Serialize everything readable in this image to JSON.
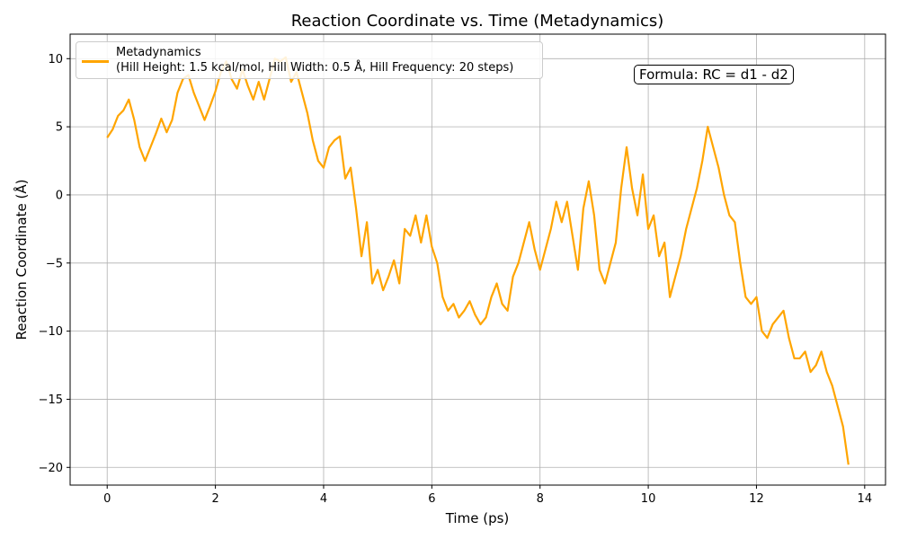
{
  "chart_data": {
    "type": "line",
    "title": "Reaction Coordinate vs. Time (Metadynamics)",
    "x_label": "Time (ps)",
    "y_label": "Reaction Coordinate (Å)",
    "annotation": "Formula: RC = d1 - d2",
    "x": [
      0,
      0.1,
      0.2,
      0.3,
      0.4,
      0.5,
      0.6,
      0.7,
      0.8,
      0.9,
      1.0,
      1.1,
      1.2,
      1.3,
      1.4,
      1.5,
      1.6,
      1.7,
      1.8,
      1.9,
      2.0,
      2.1,
      2.2,
      2.3,
      2.4,
      2.5,
      2.6,
      2.7,
      2.8,
      2.9,
      3.0,
      3.1,
      3.2,
      3.3,
      3.4,
      3.5,
      3.6,
      3.7,
      3.8,
      3.9,
      4.0,
      4.1,
      4.2,
      4.3,
      4.4,
      4.5,
      4.6,
      4.7,
      4.8,
      4.9,
      5.0,
      5.1,
      5.2,
      5.3,
      5.4,
      5.5,
      5.6,
      5.7,
      5.8,
      5.9,
      6.0,
      6.1,
      6.2,
      6.3,
      6.4,
      6.5,
      6.6,
      6.7,
      6.8,
      6.9,
      7.0,
      7.1,
      7.2,
      7.3,
      7.4,
      7.5,
      7.6,
      7.7,
      7.8,
      7.9,
      8.0,
      8.1,
      8.2,
      8.3,
      8.4,
      8.5,
      8.6,
      8.7,
      8.8,
      8.9,
      9.0,
      9.1,
      9.2,
      9.3,
      9.4,
      9.5,
      9.6,
      9.7,
      9.8,
      9.9,
      10.0,
      10.1,
      10.2,
      10.3,
      10.4,
      10.5,
      10.6,
      10.7,
      10.8,
      10.9,
      11.0,
      11.1,
      11.2,
      11.3,
      11.4,
      11.5,
      11.6,
      11.7,
      11.8,
      11.9,
      12.0,
      12.1,
      12.2,
      12.3,
      12.4,
      12.5,
      12.6,
      12.7,
      12.8,
      12.9,
      13.0,
      13.1,
      13.2,
      13.3,
      13.4,
      13.5,
      13.6,
      13.7
    ],
    "series": [
      {
        "name": "Metadynamics\n(Hill Height: 1.5 kcal/mol, Hill Width: 0.5 Å, Hill Frequency: 20 steps)",
        "color": "#ffa500",
        "values": [
          4.2,
          4.8,
          5.8,
          6.2,
          7.0,
          5.5,
          3.5,
          2.5,
          3.5,
          4.5,
          5.6,
          4.6,
          5.5,
          7.5,
          8.5,
          8.8,
          7.5,
          6.5,
          5.5,
          6.5,
          7.6,
          9.0,
          9.8,
          8.5,
          7.8,
          9.2,
          8.0,
          7.0,
          8.3,
          7.0,
          8.5,
          10.0,
          9.8,
          10.1,
          8.3,
          9.0,
          7.5,
          6.0,
          4.0,
          2.5,
          2.0,
          3.5,
          4.0,
          4.3,
          1.2,
          2.0,
          -1.0,
          -4.5,
          -2.0,
          -6.5,
          -5.5,
          -7.0,
          -6.0,
          -4.8,
          -6.5,
          -2.5,
          -3.0,
          -1.5,
          -3.5,
          -1.5,
          -3.8,
          -5.0,
          -7.5,
          -8.5,
          -8.0,
          -9.0,
          -8.5,
          -7.8,
          -8.8,
          -9.5,
          -9.0,
          -7.5,
          -6.5,
          -8.0,
          -8.5,
          -6.0,
          -5.0,
          -3.5,
          -2.0,
          -4.0,
          -5.5,
          -4.0,
          -2.5,
          -0.5,
          -2.0,
          -0.5,
          -3.0,
          -5.5,
          -1.0,
          1.0,
          -1.5,
          -5.5,
          -6.5,
          -5.0,
          -3.5,
          0.5,
          3.5,
          0.5,
          -1.5,
          1.5,
          -2.5,
          -1.5,
          -4.5,
          -3.5,
          -7.5,
          -6.0,
          -4.5,
          -2.5,
          -1.0,
          0.5,
          2.5,
          5.0,
          3.5,
          2.0,
          0.0,
          -1.5,
          -2.0,
          -5.0,
          -7.5,
          -8.0,
          -7.5,
          -10.0,
          -10.5,
          -9.5,
          -9.0,
          -8.5,
          -10.5,
          -12.0,
          -12.0,
          -11.5,
          -13.0,
          -12.5,
          -11.5,
          -13.0,
          -14.0,
          -15.5,
          -17.0,
          -19.8
        ]
      }
    ],
    "xlim": [
      -0.685,
      14.385
    ],
    "ylim": [
      -21.3,
      11.8
    ],
    "xticks": [
      0,
      2,
      4,
      6,
      8,
      10,
      12,
      14
    ],
    "yticks": [
      {
        "value": -20,
        "label": "−20"
      },
      {
        "value": -15,
        "label": "−15"
      },
      {
        "value": -10,
        "label": "−10"
      },
      {
        "value": -5,
        "label": "−5"
      },
      0,
      5,
      10
    ],
    "grid": true,
    "legend": "upper left"
  }
}
